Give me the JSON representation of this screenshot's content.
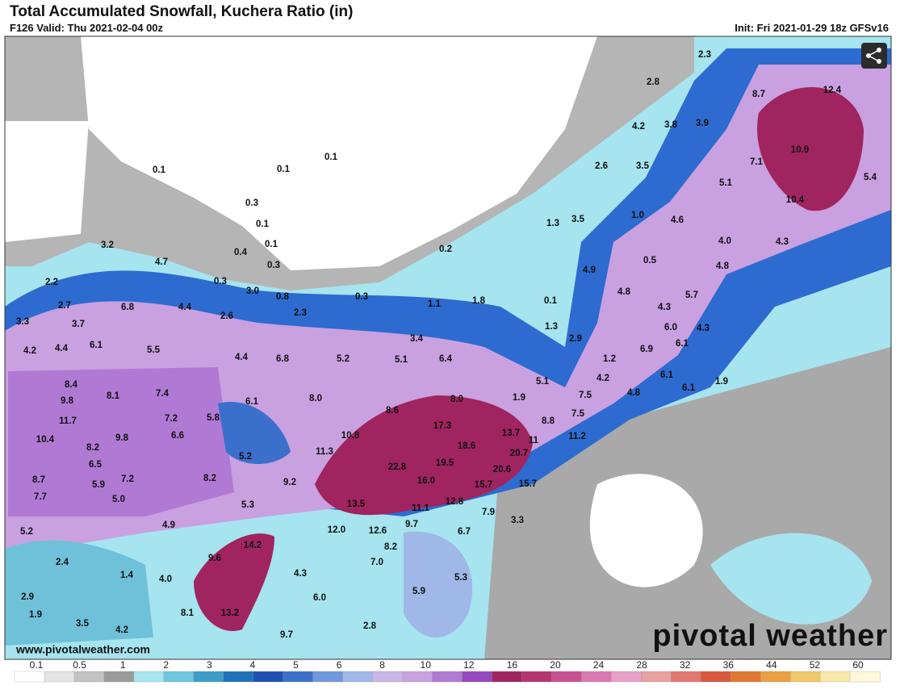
{
  "header": {
    "title": "Total Accumulated Snowfall, Kuchera Ratio (in)",
    "valid": "F126 Valid: Thu 2021-02-04 00z",
    "init": "Init: Fri 2021-01-29 18z GFSv16"
  },
  "map_labels": [
    "0.1",
    "0.1",
    "0.1",
    "0.3",
    "0.1",
    "0.1",
    "0.4",
    "0.3",
    "0.3",
    "0.2",
    "3.2",
    "4.7",
    "2.2",
    "2.7",
    "6.8",
    "4.4",
    "3.0",
    "0.8",
    "0.3",
    "1.1",
    "1.8",
    "0.1",
    "3.3",
    "3.7",
    "2.6",
    "2.3",
    "6.1",
    "4.2",
    "4.4",
    "5.5",
    "4.4",
    "6.8",
    "5.2",
    "5.1",
    "6.4",
    "3.4",
    "1.3",
    "2.9",
    "8.4",
    "9.8",
    "8.1",
    "7.4",
    "6.1",
    "8.0",
    "8.6",
    "8.0",
    "1.9",
    "5.1",
    "11.7",
    "7.2",
    "5.8",
    "10.4",
    "8.2",
    "9.8",
    "6.6",
    "10.8",
    "17.3",
    "13.7",
    "18.6",
    "11.3",
    "6.5",
    "5.2",
    "22.8",
    "19.5",
    "20.6",
    "20.7",
    "8.7",
    "7.2",
    "5.9",
    "8.2",
    "9.2",
    "16.0",
    "15.7",
    "15.7",
    "7.7",
    "5.0",
    "13.5",
    "11.1",
    "12.8",
    "7.9",
    "5.3",
    "4.9",
    "12.0",
    "12.6",
    "9.7",
    "5.2",
    "14.2",
    "8.2",
    "6.7",
    "3.3",
    "9.6",
    "2.4",
    "1.4",
    "4.0",
    "4.3",
    "7.0",
    "5.3",
    "13.2",
    "8.1",
    "6.0",
    "5.9",
    "2.9",
    "1.9",
    "3.5",
    "4.2",
    "9.7",
    "2.8",
    "2.3",
    "2.8",
    "8.7",
    "12.4",
    "4.2",
    "3.8",
    "3.9",
    "10.9",
    "7.1",
    "2.6",
    "3.5",
    "5.1",
    "5.4",
    "10.4",
    "1.3",
    "3.5",
    "1.0",
    "4.6",
    "4.0",
    "4.3",
    "0.5",
    "4.9",
    "4.8",
    "5.7",
    "4.8",
    "4.3",
    "6.0",
    "4.3",
    "6.1",
    "6.9",
    "1.2",
    "4.2",
    "6.1",
    "4.8",
    "6.1",
    "1.9",
    "7.5",
    "7.5",
    "8.8",
    "11.2",
    "11"
  ],
  "colorbar": {
    "labels": [
      "0.1",
      "0.5",
      "1",
      "2",
      "3",
      "4",
      "5",
      "6",
      "8",
      "10",
      "12",
      "16",
      "20",
      "24",
      "28",
      "32",
      "36",
      "44",
      "52",
      "60"
    ]
  },
  "footer": {
    "website": "www.pivotalweather.com",
    "logo": "pivotal weather"
  }
}
